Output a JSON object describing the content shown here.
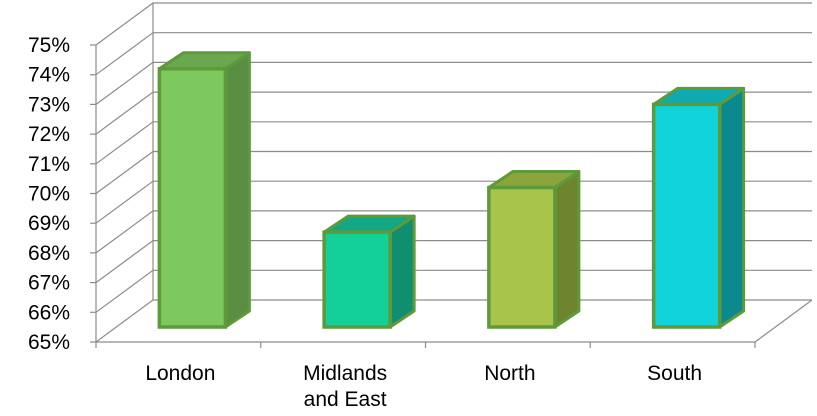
{
  "chart_data": {
    "type": "bar",
    "title": "",
    "xlabel": "",
    "ylabel": "",
    "categories": [
      "London",
      "Midlands and East",
      "North",
      "South"
    ],
    "category_lines": [
      [
        "London"
      ],
      [
        "Midlands",
        "and East"
      ],
      [
        "North"
      ],
      [
        "South"
      ]
    ],
    "values": [
      74.2,
      68.7,
      70.2,
      73.0
    ],
    "ylim": [
      65,
      75
    ],
    "yticks": [
      "65%",
      "66%",
      "67%",
      "68%",
      "69%",
      "70%",
      "71%",
      "72%",
      "73%",
      "74%",
      "75%"
    ],
    "grid": true,
    "legend": "none",
    "style": "3d-column",
    "bar_colors": [
      {
        "front": "#7dc95e",
        "side": "#5a8f43",
        "top": "#6aa84f",
        "edge": "#5e9a3a"
      },
      {
        "front": "#13cf98",
        "side": "#0f8f70",
        "top": "#12a885",
        "edge": "#5e9a3a"
      },
      {
        "front": "#a8c44a",
        "side": "#6e8530",
        "top": "#8ca43c",
        "edge": "#5e9a3a"
      },
      {
        "front": "#10d3dc",
        "side": "#0a8a8f",
        "top": "#0fa9b0",
        "edge": "#5e9a3a"
      }
    ]
  }
}
